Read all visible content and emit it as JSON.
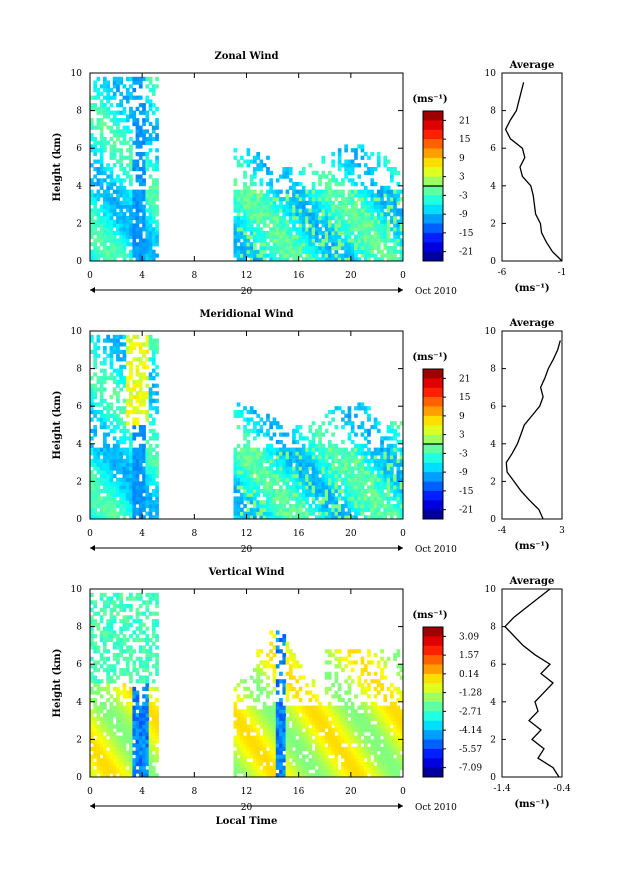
{
  "chart_data": [
    {
      "type": "heatmap",
      "title": "Zonal Wind",
      "ylabel": "Height (km)",
      "xticks": [
        "0",
        "4",
        "8",
        "12",
        "16",
        "20",
        "0"
      ],
      "yticks": [
        "0",
        "2",
        "4",
        "6",
        "8",
        "10"
      ],
      "xlim": [
        0,
        24
      ],
      "ylim": [
        0,
        10
      ],
      "date_labels": {
        "day": "20",
        "month_year": "Oct 2010"
      },
      "colorbar": {
        "unit_label": "(ms⁻¹)",
        "ticks": [
          "21",
          "15",
          "9",
          "3",
          "-3",
          "-9",
          "-15",
          "-21"
        ],
        "range": [
          -24,
          24
        ],
        "contour_level": 0
      },
      "data_gaps": [
        [
          5.2,
          11
        ]
      ],
      "average": {
        "title": "Average",
        "xlabel": "(ms⁻¹)",
        "xticks": [
          "-6",
          "-1"
        ],
        "xlim": [
          -6,
          -1
        ],
        "yticks": [
          "0",
          "2",
          "4",
          "6",
          "8",
          "10"
        ],
        "profile": {
          "height": [
            0,
            0.5,
            1,
            1.5,
            2,
            2.5,
            3,
            3.5,
            4,
            4.5,
            5,
            5.5,
            6,
            6.5,
            7,
            7.5,
            8,
            8.5,
            9,
            9.5
          ],
          "value": [
            -1,
            -1.8,
            -2.3,
            -2.7,
            -2.8,
            -3.2,
            -3.3,
            -3.4,
            -3.6,
            -4.3,
            -4.5,
            -4.1,
            -4.3,
            -5.3,
            -5.7,
            -5.3,
            -4.8,
            -4.6,
            -4.4,
            -4.2
          ]
        }
      }
    },
    {
      "type": "heatmap",
      "title": "Meridional Wind",
      "ylabel": "Height (km)",
      "xticks": [
        "0",
        "4",
        "8",
        "12",
        "16",
        "20",
        "0"
      ],
      "yticks": [
        "0",
        "2",
        "4",
        "6",
        "8",
        "10"
      ],
      "xlim": [
        0,
        24
      ],
      "ylim": [
        0,
        10
      ],
      "date_labels": {
        "day": "20",
        "month_year": "Oct 2010"
      },
      "colorbar": {
        "unit_label": "(ms⁻¹)",
        "ticks": [
          "21",
          "15",
          "9",
          "3",
          "-3",
          "-9",
          "-15",
          "-21"
        ],
        "range": [
          -24,
          24
        ],
        "contour_level": 0
      },
      "data_gaps": [
        [
          5.2,
          11
        ]
      ],
      "average": {
        "title": "Average",
        "xlabel": "(ms⁻¹)",
        "xticks": [
          "-4",
          "3"
        ],
        "xlim": [
          -4,
          3
        ],
        "yticks": [
          "0",
          "2",
          "4",
          "6",
          "8",
          "10"
        ],
        "profile": {
          "height": [
            0,
            0.5,
            1,
            1.5,
            2,
            2.5,
            3,
            3.5,
            4,
            4.5,
            5,
            5.5,
            6,
            6.5,
            7,
            7.5,
            8,
            8.5,
            9,
            9.5
          ],
          "value": [
            0.8,
            0.3,
            -0.8,
            -1.8,
            -2.6,
            -3.4,
            -3.5,
            -2.8,
            -2.2,
            -1.8,
            -1.4,
            -0.5,
            0.4,
            0.8,
            0.5,
            1.0,
            1.4,
            2.0,
            2.5,
            2.8
          ]
        }
      }
    },
    {
      "type": "heatmap",
      "title": "Vertical Wind",
      "ylabel": "Height (km)",
      "xlabel": "Local Time",
      "xticks": [
        "0",
        "4",
        "8",
        "12",
        "16",
        "20",
        "0"
      ],
      "yticks": [
        "0",
        "2",
        "4",
        "6",
        "8",
        "10"
      ],
      "xlim": [
        0,
        24
      ],
      "ylim": [
        0,
        10
      ],
      "date_labels": {
        "day": "20",
        "month_year": "Oct 2010"
      },
      "colorbar": {
        "unit_label": "(ms⁻¹)",
        "ticks": [
          "3.09",
          "1.57",
          "0.14",
          "-1.28",
          "-2.71",
          "-4.14",
          "-5.57",
          "-7.09"
        ],
        "range": [
          -7.8,
          3.8
        ]
      },
      "data_gaps": [
        [
          5.2,
          11
        ]
      ],
      "average": {
        "title": "Average",
        "xlabel": "(ms⁻¹)",
        "xticks": [
          "-1.4",
          "-0.4"
        ],
        "xlim": [
          -1.4,
          -0.4
        ],
        "yticks": [
          "0",
          "2",
          "4",
          "6",
          "8",
          "10"
        ],
        "profile": {
          "height": [
            0,
            0.5,
            1,
            1.5,
            2,
            2.5,
            3,
            3.5,
            4,
            4.5,
            5,
            5.5,
            6,
            6.5,
            7,
            7.5,
            8,
            8.5,
            9,
            9.5,
            10
          ],
          "value": [
            -0.45,
            -0.55,
            -0.8,
            -0.7,
            -0.9,
            -0.75,
            -0.95,
            -0.8,
            -0.85,
            -0.7,
            -0.55,
            -0.75,
            -0.6,
            -0.85,
            -1.05,
            -1.2,
            -1.35,
            -1.2,
            -1.0,
            -0.8,
            -0.6
          ]
        }
      }
    }
  ]
}
